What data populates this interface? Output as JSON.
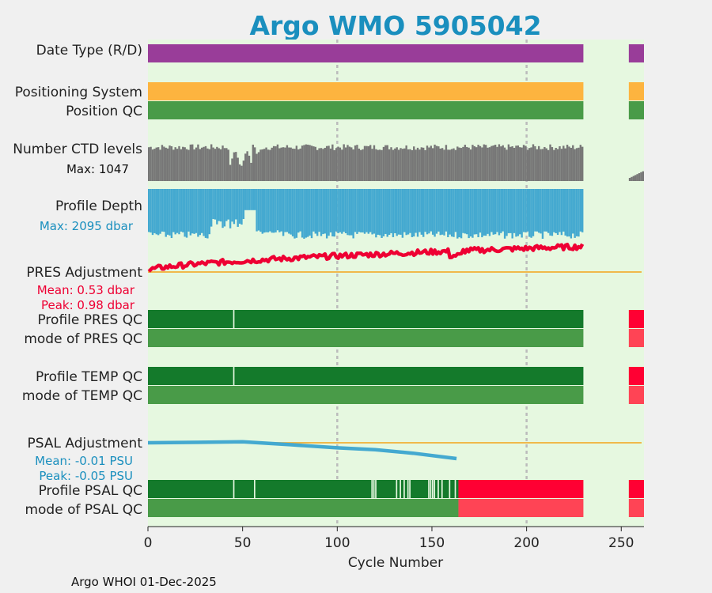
{
  "colors": {
    "background": "#f0f0f0",
    "panel": "#e6f8e0",
    "title": "#1a8fbe",
    "data_mode": "#993d99",
    "positioning": "#fdb43f",
    "position_qc": "#499b48",
    "ctd": "#777777",
    "depth": "#44a9d0",
    "pres_adj": "#ee0033",
    "ref_line": "#f2b036",
    "qc_dark": "#147a2b",
    "qc_light": "#499b48",
    "qc_bad": "#ff0033",
    "qc_bad_light": "#ff4455",
    "psal_adj": "#44a9d0",
    "grid": "#bbbbbb"
  },
  "chart_data": {
    "type": "timeline",
    "title": "Argo WMO 5905042",
    "xlabel": "Cycle Number",
    "xlim": [
      0,
      262
    ],
    "xticks": [
      0,
      50,
      100,
      150,
      200,
      250
    ],
    "xtick_labels": [
      "0",
      "50",
      "100",
      "150",
      "200",
      "250"
    ],
    "grid_x": [
      100,
      200
    ],
    "footer": "Argo WHOI 01-Dec-2025",
    "segments": [
      [
        0,
        230
      ],
      [
        254,
        262
      ]
    ],
    "rows": {
      "data_mode": {
        "label": "Date Type (R/D)"
      },
      "positioning": {
        "label": "Positioning System"
      },
      "position_qc": {
        "label": "Position QC"
      },
      "ctd": {
        "label": "Number CTD levels",
        "max_label": "Max: 1047",
        "max_value": 1047
      },
      "depth": {
        "label": "Profile Depth",
        "max_label": "Max: 2095 dbar",
        "max_value": 2095
      },
      "pres_adj": {
        "label": "PRES Adjustment",
        "mean_label": "Mean: 0.53 dbar",
        "peak_label": "Peak: 0.98 dbar",
        "range": [
          0,
          1
        ],
        "start": 0.05,
        "end": 0.85
      },
      "profile_pres_qc": {
        "label": "Profile PRES QC",
        "gaps": [
          45
        ]
      },
      "mode_pres_qc": {
        "label": "mode of PRES QC"
      },
      "profile_temp_qc": {
        "label": "Profile TEMP QC",
        "gaps": [
          45
        ]
      },
      "mode_temp_qc": {
        "label": "mode of TEMP QC"
      },
      "psal_adj": {
        "label": "PSAL Adjustment",
        "mean_label": "Mean: -0.01 PSU",
        "peak_label": "Peak: -0.05 PSU",
        "points": [
          [
            0,
            0.0
          ],
          [
            50,
            0.003
          ],
          [
            75,
            -0.006
          ],
          [
            100,
            -0.016
          ],
          [
            120,
            -0.022
          ],
          [
            140,
            -0.033
          ],
          [
            163,
            -0.05
          ]
        ]
      },
      "profile_psal_qc": {
        "label": "Profile PSAL QC",
        "gaps": [
          45,
          56,
          118,
          119,
          120,
          131,
          133,
          135,
          137,
          138,
          148,
          149,
          150,
          151,
          153,
          155,
          159,
          162
        ],
        "bad_from": 164
      },
      "mode_psal_qc": {
        "label": "mode of PSAL QC",
        "bad_from": 164
      }
    }
  }
}
